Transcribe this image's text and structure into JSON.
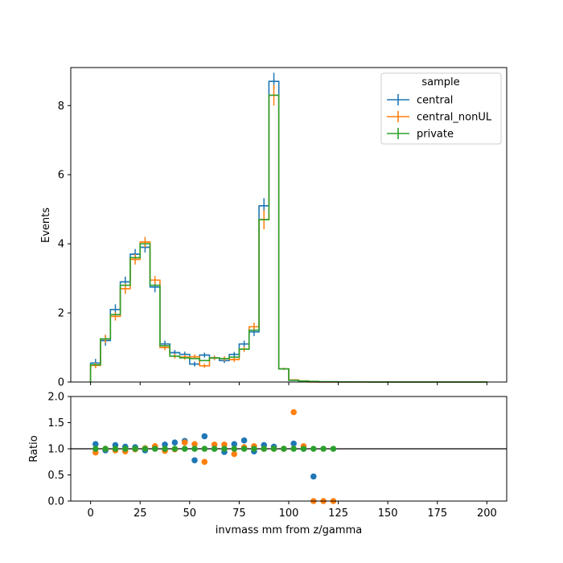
{
  "chart_data": {
    "type": "histogram",
    "xlabel": "invmass mm from z/gamma",
    "main": {
      "ylabel": "Events",
      "xlim": [
        -10,
        210
      ],
      "ylim": [
        0,
        9.1
      ],
      "x_ticks": [
        0,
        25,
        50,
        75,
        100,
        125,
        150,
        175,
        200
      ],
      "y_ticks": [
        0,
        2,
        4,
        6,
        8
      ],
      "bin_edges": [
        0,
        5,
        10,
        15,
        20,
        25,
        30,
        35,
        40,
        45,
        50,
        55,
        60,
        65,
        70,
        75,
        80,
        85,
        90,
        95,
        100,
        105,
        110,
        115,
        120,
        125,
        130,
        135,
        140,
        145,
        150,
        155,
        160,
        165,
        170,
        175,
        180,
        185,
        190,
        195,
        200
      ],
      "series": [
        {
          "name": "central",
          "color": "#1f77b4",
          "values": [
            0.55,
            1.2,
            2.1,
            2.9,
            3.7,
            3.9,
            2.75,
            1.1,
            0.85,
            0.8,
            0.52,
            0.78,
            0.7,
            0.62,
            0.8,
            1.1,
            1.45,
            5.1,
            8.7,
            0.38,
            0.05,
            0.02,
            0.01,
            0,
            0,
            0,
            0,
            0,
            0,
            0,
            0,
            0,
            0,
            0,
            0,
            0,
            0,
            0,
            0,
            0
          ],
          "errors": [
            0.12,
            0.15,
            0.15,
            0.15,
            0.15,
            0.15,
            0.15,
            0.1,
            0.08,
            0.08,
            0.07,
            0.07,
            0.07,
            0.07,
            0.07,
            0.1,
            0.12,
            0.22,
            0.25,
            0.03,
            0.01,
            0.005,
            0,
            0,
            0,
            0,
            0,
            0,
            0,
            0,
            0,
            0,
            0,
            0,
            0,
            0,
            0,
            0,
            0,
            0
          ]
        },
        {
          "name": "central_nonUL",
          "color": "#ff7f0e",
          "values": [
            0.48,
            1.25,
            1.9,
            2.7,
            3.55,
            4.05,
            2.95,
            1.0,
            0.75,
            0.72,
            0.73,
            0.47,
            0.7,
            0.68,
            0.65,
            0.95,
            1.6,
            4.7,
            8.3,
            0.38,
            0.06,
            0.03,
            0,
            0,
            0,
            0,
            0,
            0,
            0,
            0,
            0,
            0,
            0,
            0,
            0,
            0,
            0,
            0,
            0,
            0
          ],
          "errors": [
            0.08,
            0.12,
            0.12,
            0.15,
            0.15,
            0.15,
            0.12,
            0.08,
            0.07,
            0.07,
            0.07,
            0.06,
            0.06,
            0.07,
            0.07,
            0.08,
            0.12,
            0.28,
            0.3,
            0.03,
            0.01,
            0.005,
            0,
            0,
            0,
            0,
            0,
            0,
            0,
            0,
            0,
            0,
            0,
            0,
            0,
            0,
            0,
            0,
            0,
            0
          ]
        },
        {
          "name": "private",
          "color": "#2ca02c",
          "values": [
            0.5,
            1.25,
            1.95,
            2.8,
            3.6,
            4.0,
            2.8,
            1.05,
            0.75,
            0.7,
            0.68,
            0.62,
            0.7,
            0.68,
            0.72,
            0.95,
            1.5,
            4.7,
            8.3,
            0.38,
            0.05,
            0.03,
            0.02,
            0.01,
            0.01,
            0.005,
            0.004,
            0.003,
            0.002,
            0.002,
            0.001,
            0.001,
            0.001,
            0.001,
            0.001,
            0.001,
            0.001,
            0.001,
            0.001,
            0.001
          ]
        }
      ]
    },
    "ratio": {
      "ylabel": "Ratio",
      "ylim": [
        0,
        2.0
      ],
      "y_ticks": [
        "0.0",
        "0.5",
        "1.0",
        "1.5",
        "2.0"
      ],
      "reference_line": 1.0,
      "x": [
        2.5,
        7.5,
        12.5,
        17.5,
        22.5,
        27.5,
        32.5,
        37.5,
        42.5,
        47.5,
        52.5,
        57.5,
        62.5,
        67.5,
        72.5,
        77.5,
        82.5,
        87.5,
        92.5,
        97.5,
        102.5,
        107.5,
        112.5,
        117.5,
        122.5
      ],
      "series": [
        {
          "name": "central",
          "color": "#1f77b4",
          "values": [
            1.09,
            0.97,
            1.07,
            1.04,
            1.03,
            0.97,
            1.02,
            1.08,
            1.12,
            1.15,
            0.78,
            1.24,
            1.0,
            0.94,
            1.09,
            1.16,
            0.95,
            1.07,
            1.04,
            1.0,
            1.1,
            1.0,
            0.47,
            null,
            null
          ]
        },
        {
          "name": "central_nonUL",
          "color": "#ff7f0e",
          "values": [
            0.93,
            1.0,
            0.97,
            0.95,
            0.99,
            1.01,
            1.05,
            0.96,
            0.99,
            1.12,
            1.09,
            0.75,
            1.08,
            1.08,
            0.9,
            1.03,
            1.05,
            1.0,
            1.0,
            1.0,
            1.7,
            1.05,
            0,
            0,
            0
          ]
        },
        {
          "name": "private",
          "color": "#2ca02c",
          "values": [
            1,
            1,
            1,
            1,
            1,
            1,
            1,
            1,
            1,
            1,
            1,
            1,
            1,
            1,
            1,
            1,
            1,
            1,
            1,
            1,
            1,
            1,
            1,
            1,
            1
          ]
        }
      ]
    },
    "legend": {
      "title": "sample",
      "position": "top-right",
      "entries": [
        "central",
        "central_nonUL",
        "private"
      ]
    }
  }
}
